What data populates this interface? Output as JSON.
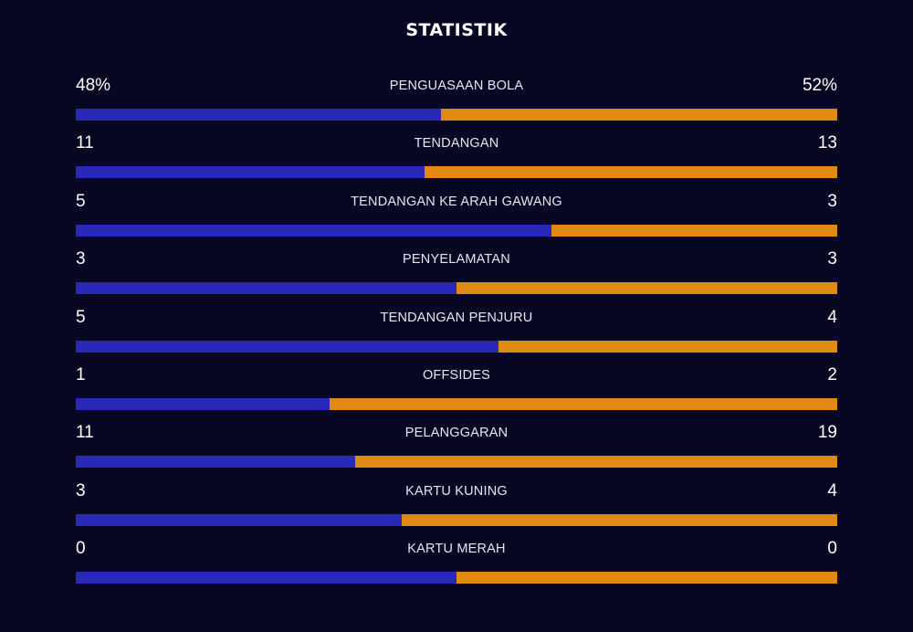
{
  "header": {
    "title": "STATISTIK"
  },
  "colors": {
    "home": "#2a28b8",
    "away": "#e08a13",
    "background": "#070724"
  },
  "stats": [
    {
      "label": "PENGUASAAN BOLA",
      "home_display": "48%",
      "away_display": "52%",
      "home": 48,
      "away": 52
    },
    {
      "label": "TENDANGAN",
      "home_display": "11",
      "away_display": "13",
      "home": 11,
      "away": 13
    },
    {
      "label": "TENDANGAN KE ARAH GAWANG",
      "home_display": "5",
      "away_display": "3",
      "home": 5,
      "away": 3
    },
    {
      "label": "PENYELAMATAN",
      "home_display": "3",
      "away_display": "3",
      "home": 3,
      "away": 3
    },
    {
      "label": "TENDANGAN PENJURU",
      "home_display": "5",
      "away_display": "4",
      "home": 5,
      "away": 4
    },
    {
      "label": "OFFSIDES",
      "home_display": "1",
      "away_display": "2",
      "home": 1,
      "away": 2
    },
    {
      "label": "PELANGGARAN",
      "home_display": "11",
      "away_display": "19",
      "home": 11,
      "away": 19
    },
    {
      "label": "KARTU KUNING",
      "home_display": "3",
      "away_display": "4",
      "home": 3,
      "away": 4
    },
    {
      "label": "KARTU MERAH",
      "home_display": "0",
      "away_display": "0",
      "home": 0,
      "away": 0
    }
  ]
}
